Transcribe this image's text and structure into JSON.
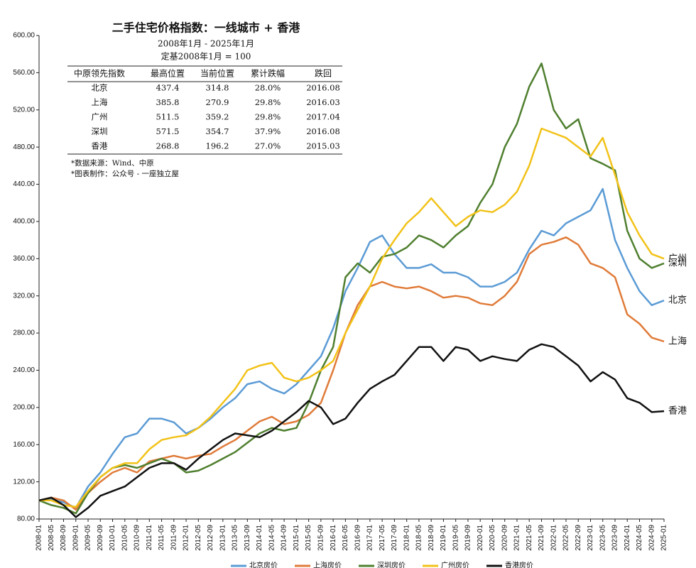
{
  "chart_data": {
    "type": "line",
    "title": "二手住宅价格指数：一线城市 + 香港",
    "subtitle": "2008年1月 - 2025年1月",
    "subtitle2": "定基2008年1月 = 100",
    "notes": [
      "*数据来源：Wind、中原",
      "*图表制作：公众号 - 一座独立屋"
    ],
    "table": {
      "header": [
        "中原领先指数",
        "最高位置",
        "当前位置",
        "累计跌幅",
        "跌回"
      ],
      "rows": [
        [
          "北京",
          "437.4",
          "314.8",
          "28.0%",
          "2016.08"
        ],
        [
          "上海",
          "385.8",
          "270.9",
          "29.8%",
          "2016.03"
        ],
        [
          "广州",
          "511.5",
          "359.2",
          "29.8%",
          "2017.04"
        ],
        [
          "深圳",
          "571.5",
          "354.7",
          "37.9%",
          "2016.08"
        ],
        [
          "香港",
          "268.8",
          "196.2",
          "27.0%",
          "2015.03"
        ]
      ]
    },
    "categories": [
      "2008-01",
      "2008-05",
      "2008-09",
      "2009-01",
      "2009-05",
      "2009-09",
      "2010-01",
      "2010-05",
      "2010-09",
      "2011-01",
      "2011-05",
      "2011-09",
      "2012-01",
      "2012-05",
      "2012-09",
      "2013-01",
      "2013-05",
      "2013-09",
      "2014-01",
      "2014-05",
      "2014-09",
      "2015-01",
      "2015-05",
      "2015-09",
      "2016-01",
      "2016-05",
      "2016-09",
      "2017-01",
      "2017-05",
      "2017-09",
      "2018-01",
      "2018-05",
      "2018-09",
      "2019-01",
      "2019-05",
      "2019-09",
      "2020-01",
      "2020-05",
      "2020-09",
      "2021-01",
      "2021-05",
      "2021-09",
      "2022-01",
      "2022-05",
      "2022-09",
      "2023-01",
      "2023-05",
      "2023-09",
      "2024-01",
      "2024-05",
      "2024-09",
      "2025-01"
    ],
    "series": [
      {
        "name": "北京房价",
        "end_label": "北京",
        "color": "#5b9bd5",
        "values": [
          100,
          101,
          98,
          92,
          115,
          130,
          150,
          168,
          172,
          188,
          188,
          184,
          172,
          178,
          188,
          200,
          210,
          225,
          228,
          220,
          215,
          225,
          240,
          255,
          285,
          325,
          350,
          378,
          385,
          365,
          350,
          350,
          354,
          345,
          345,
          340,
          330,
          330,
          335,
          345,
          370,
          390,
          385,
          398,
          405,
          412,
          435,
          380,
          350,
          325,
          310,
          315
        ]
      },
      {
        "name": "上海房价",
        "end_label": "上海",
        "color": "#e07b39",
        "values": [
          100,
          103,
          100,
          90,
          108,
          120,
          130,
          135,
          130,
          142,
          145,
          148,
          145,
          148,
          150,
          158,
          165,
          175,
          185,
          190,
          182,
          185,
          192,
          205,
          240,
          280,
          310,
          330,
          335,
          330,
          328,
          330,
          325,
          318,
          320,
          318,
          312,
          310,
          320,
          335,
          365,
          375,
          378,
          383,
          375,
          355,
          350,
          340,
          300,
          290,
          275,
          271
        ]
      },
      {
        "name": "深圳房价",
        "end_label": "深圳",
        "color": "#4f7f2f",
        "values": [
          100,
          95,
          92,
          86,
          108,
          125,
          135,
          138,
          135,
          140,
          145,
          140,
          130,
          132,
          138,
          145,
          152,
          162,
          172,
          178,
          175,
          178,
          205,
          240,
          265,
          340,
          355,
          345,
          362,
          365,
          372,
          385,
          380,
          372,
          385,
          395,
          420,
          440,
          480,
          505,
          545,
          570,
          520,
          500,
          510,
          468,
          462,
          455,
          390,
          360,
          350,
          355
        ]
      },
      {
        "name": "广州房价",
        "end_label": "广州",
        "color": "#f2c218",
        "values": [
          100,
          100,
          95,
          93,
          110,
          125,
          135,
          140,
          140,
          155,
          165,
          168,
          170,
          178,
          190,
          205,
          220,
          240,
          245,
          248,
          232,
          228,
          232,
          240,
          250,
          280,
          305,
          330,
          360,
          380,
          398,
          410,
          425,
          410,
          395,
          405,
          412,
          410,
          418,
          432,
          460,
          500,
          495,
          490,
          480,
          470,
          490,
          450,
          410,
          385,
          365,
          360
        ]
      },
      {
        "name": "香港房价",
        "end_label": "香港",
        "color": "#111111",
        "values": [
          100,
          103,
          95,
          82,
          92,
          105,
          110,
          115,
          125,
          135,
          140,
          140,
          133,
          145,
          155,
          165,
          172,
          170,
          168,
          175,
          185,
          195,
          207,
          200,
          182,
          188,
          205,
          220,
          228,
          235,
          250,
          265,
          265,
          250,
          265,
          262,
          250,
          255,
          252,
          250,
          262,
          268,
          265,
          255,
          245,
          228,
          238,
          230,
          210,
          205,
          195,
          196
        ]
      }
    ],
    "ylim": [
      80,
      600
    ],
    "yticks": [
      {
        "value": 80,
        "label": "80.00"
      },
      {
        "value": 120,
        "label": "120.00"
      },
      {
        "value": 160,
        "label": "160.00"
      },
      {
        "value": 200,
        "label": "200.00"
      },
      {
        "value": 240,
        "label": "240.00"
      },
      {
        "value": 280,
        "label": "280.00"
      },
      {
        "value": 320,
        "label": "320.00"
      },
      {
        "value": 360,
        "label": "360.00"
      },
      {
        "value": 400,
        "label": "400.00"
      },
      {
        "value": 440,
        "label": "440.00"
      },
      {
        "value": 480,
        "label": "480.00"
      },
      {
        "value": 520,
        "label": "520.00"
      },
      {
        "value": 560,
        "label": "560.00"
      },
      {
        "value": 600,
        "label": "600.00"
      }
    ],
    "grid": false
  }
}
